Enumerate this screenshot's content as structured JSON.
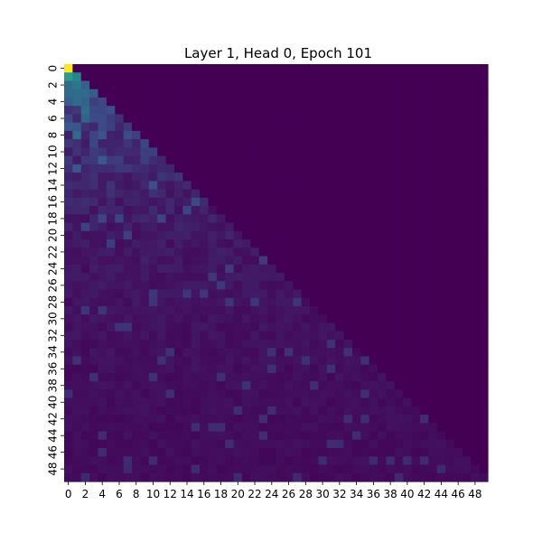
{
  "chart_data": {
    "type": "heatmap",
    "title": "Layer 1, Head 0, Epoch 101",
    "xlabel": "",
    "ylabel": "",
    "size": 50,
    "x_tick_labels": [
      "0",
      "2",
      "4",
      "6",
      "8",
      "10",
      "12",
      "14",
      "16",
      "18",
      "20",
      "22",
      "24",
      "26",
      "28",
      "30",
      "32",
      "34",
      "36",
      "38",
      "40",
      "42",
      "44",
      "46",
      "48"
    ],
    "y_tick_labels": [
      "0",
      "2",
      "4",
      "6",
      "8",
      "10",
      "12",
      "14",
      "16",
      "18",
      "20",
      "22",
      "24",
      "26",
      "28",
      "30",
      "32",
      "34",
      "36",
      "38",
      "40",
      "42",
      "44",
      "46",
      "48"
    ],
    "colormap": "viridis",
    "mask": "causal-lower-triangular",
    "value_range": [
      0,
      1
    ],
    "notable_values": [
      {
        "row": 0,
        "col": 0,
        "value": 1.0
      },
      {
        "row": 1,
        "col": 0,
        "value": 0.55
      },
      {
        "row": 1,
        "col": 1,
        "value": 0.45
      },
      {
        "row": 2,
        "col": 0,
        "value": 0.35
      },
      {
        "row": 2,
        "col": 1,
        "value": 0.4
      },
      {
        "row": 2,
        "col": 2,
        "value": 0.3
      }
    ],
    "grid": false
  },
  "colors": {
    "background": "#ffffff",
    "masked": "#440154"
  }
}
